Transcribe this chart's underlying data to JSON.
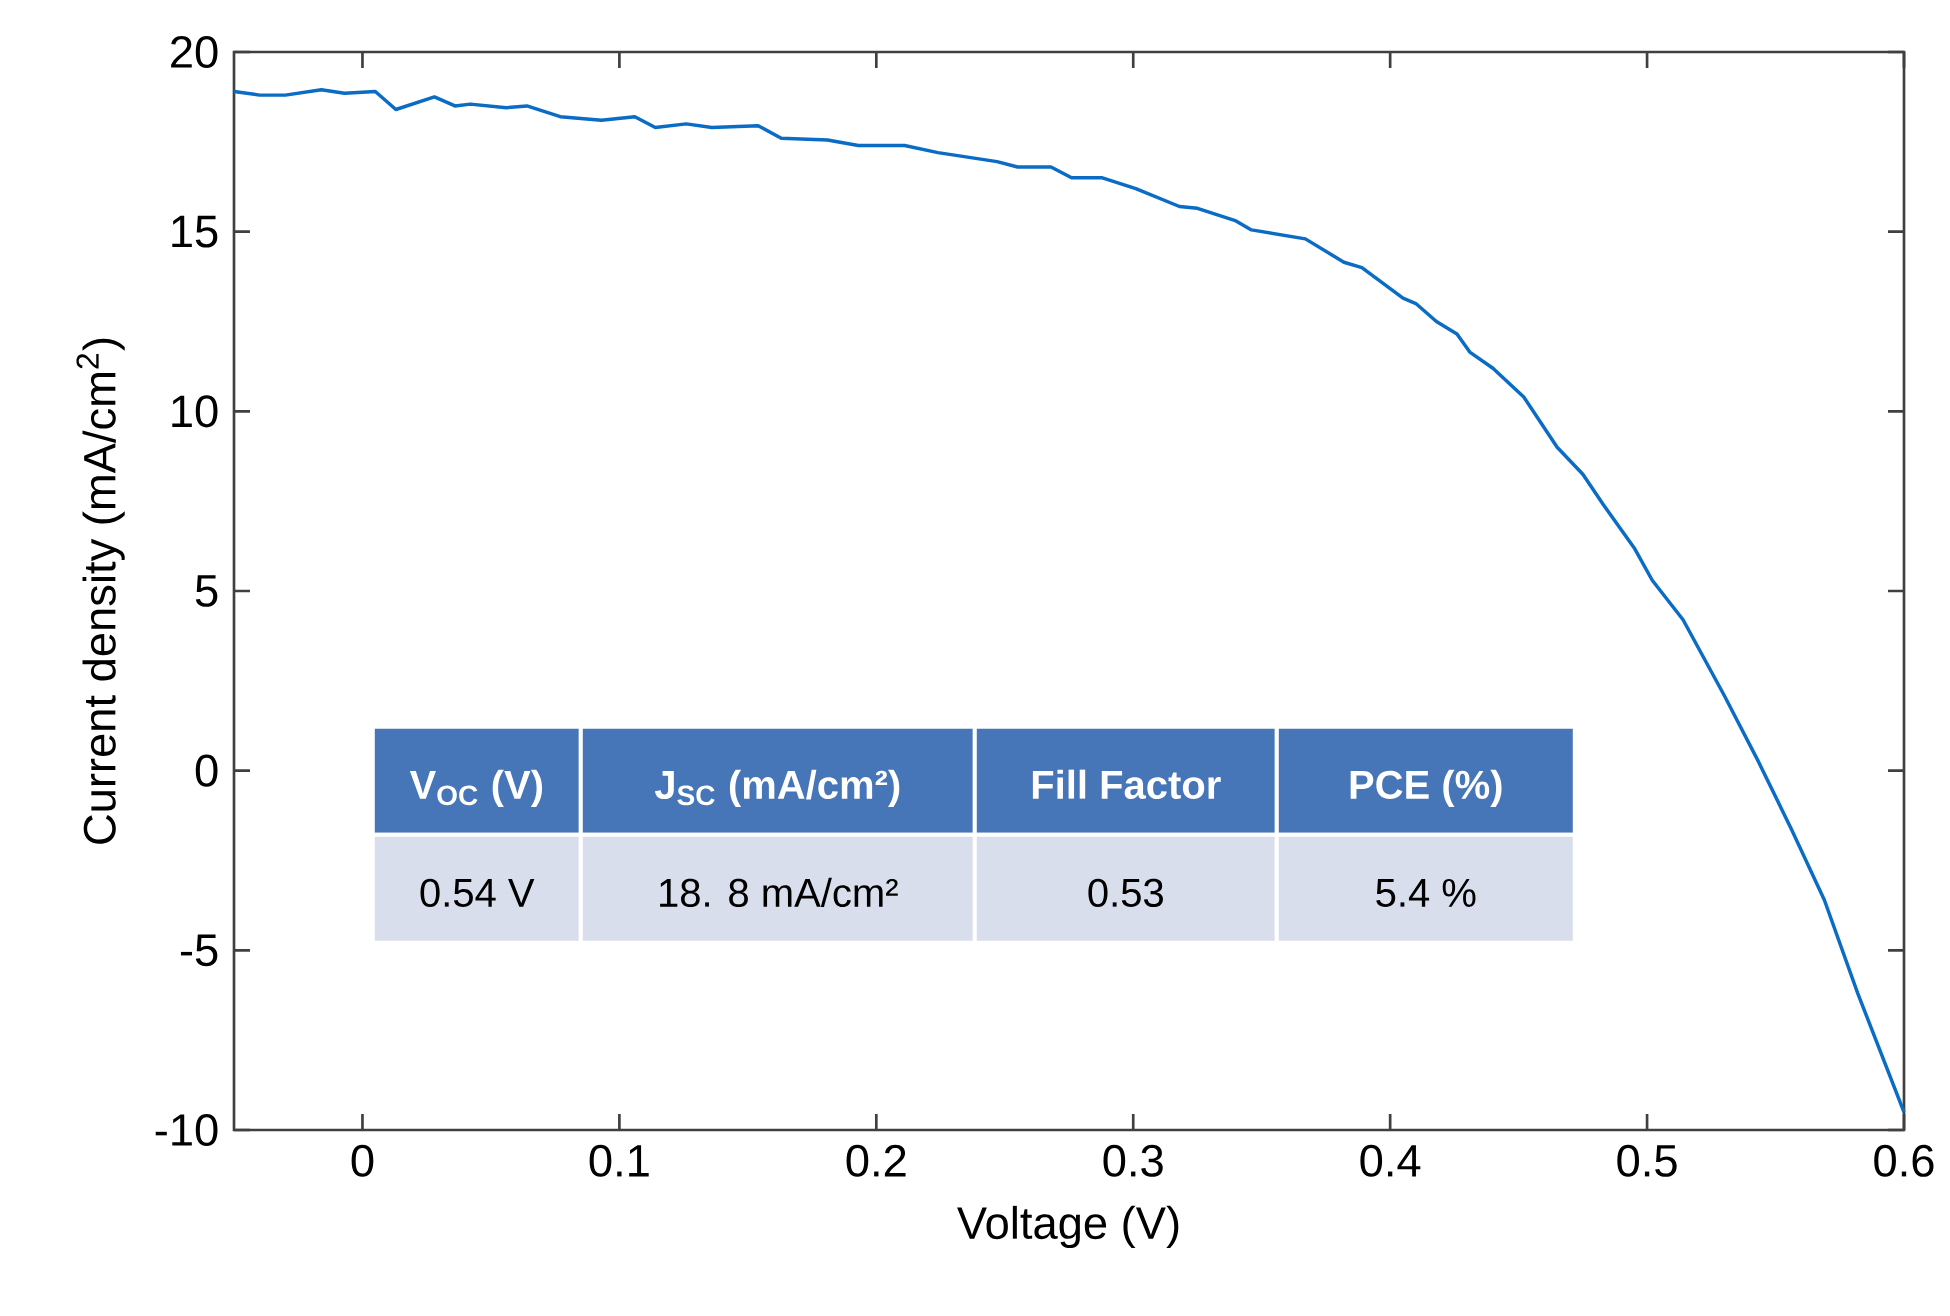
{
  "chart_data": {
    "type": "line",
    "xlabel": "Voltage (V)",
    "ylabel": "Current density (mA/cm$^{2}$)",
    "color": "#0a6cc4",
    "x": [
      -0.05,
      -0.04,
      -0.03,
      -0.016,
      -0.007,
      0.005,
      0.013,
      0.028,
      0.036,
      0.042,
      0.056,
      0.064,
      0.077,
      0.093,
      0.106,
      0.114,
      0.126,
      0.136,
      0.154,
      0.163,
      0.181,
      0.193,
      0.211,
      0.224,
      0.247,
      0.255,
      0.268,
      0.276,
      0.288,
      0.301,
      0.318,
      0.325,
      0.34,
      0.346,
      0.367,
      0.382,
      0.389,
      0.405,
      0.41,
      0.418,
      0.426,
      0.431,
      0.44,
      0.452,
      0.465,
      0.475,
      0.483,
      0.495,
      0.502,
      0.514,
      0.53,
      0.543,
      0.556,
      0.569,
      0.582,
      0.6
    ],
    "values": [
      18.9,
      18.8,
      18.8,
      18.95,
      18.85,
      18.9,
      18.4,
      18.75,
      18.5,
      18.55,
      18.45,
      18.5,
      18.2,
      18.1,
      18.2,
      17.9,
      18.0,
      17.9,
      17.95,
      17.6,
      17.55,
      17.4,
      17.4,
      17.2,
      16.95,
      16.8,
      16.8,
      16.5,
      16.5,
      16.2,
      15.7,
      15.65,
      15.3,
      15.05,
      14.8,
      14.15,
      14.0,
      13.15,
      13.0,
      12.5,
      12.15,
      11.65,
      11.2,
      10.4,
      9.0,
      8.25,
      7.4,
      6.2,
      5.3,
      4.2,
      2.1,
      0.3,
      -1.6,
      -3.6,
      -6.2,
      -9.5
    ],
    "xlim": [
      -0.05,
      0.6
    ],
    "ylim": [
      -10,
      20
    ],
    "xticks": [
      0,
      0.1,
      0.2,
      0.3,
      0.4,
      0.5,
      0.6
    ],
    "yticks": [
      -10,
      -5,
      0,
      5,
      10,
      15,
      20
    ],
    "annotations": [
      "V$_{OC}$ (V)",
      "J$_{SC}$ (mA/cm²)",
      "Fill Factor",
      "PCE (%)",
      "0.54 V",
      "18. 8 mA/cm²",
      "0.53",
      "5.4 %"
    ]
  }
}
